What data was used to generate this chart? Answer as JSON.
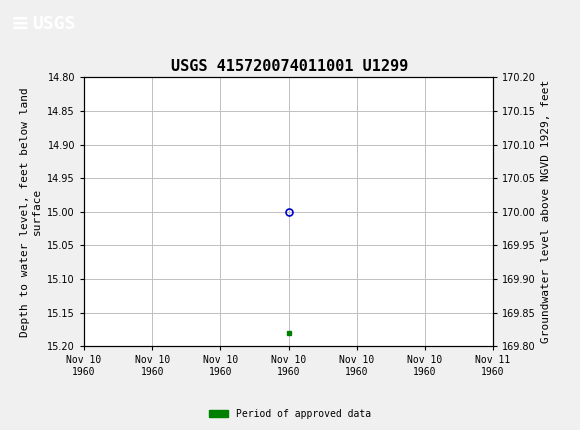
{
  "title": "USGS 415720074011001 U1299",
  "ylabel_left": "Depth to water level, feet below land\nsurface",
  "ylabel_right": "Groundwater level above NGVD 1929, feet",
  "ylim_left": [
    15.2,
    14.8
  ],
  "ylim_right": [
    169.8,
    170.2
  ],
  "xlim": [
    0,
    6
  ],
  "yticks_left": [
    14.8,
    14.85,
    14.9,
    14.95,
    15.0,
    15.05,
    15.1,
    15.15,
    15.2
  ],
  "yticks_right": [
    170.2,
    170.15,
    170.1,
    170.05,
    170.0,
    169.95,
    169.9,
    169.85,
    169.8
  ],
  "xtick_labels": [
    "Nov 10\n1960",
    "Nov 10\n1960",
    "Nov 10\n1960",
    "Nov 10\n1960",
    "Nov 10\n1960",
    "Nov 10\n1960",
    "Nov 11\n1960"
  ],
  "xtick_positions": [
    0,
    1,
    2,
    3,
    4,
    5,
    6
  ],
  "data_point_x": 3,
  "data_point_y": 15.0,
  "green_square_x": 3,
  "green_square_y": 15.18,
  "point_color": "#0000cc",
  "green_color": "#008000",
  "background_color": "#f0f0f0",
  "plot_bg_color": "#ffffff",
  "grid_color": "#c0c0c0",
  "header_color": "#1a6637",
  "legend_label": "Period of approved data",
  "title_fontsize": 11,
  "axis_fontsize": 8,
  "tick_fontsize": 7,
  "font_family": "DejaVu Sans Mono",
  "usgs_text": "USGS",
  "header_text_size": 11
}
